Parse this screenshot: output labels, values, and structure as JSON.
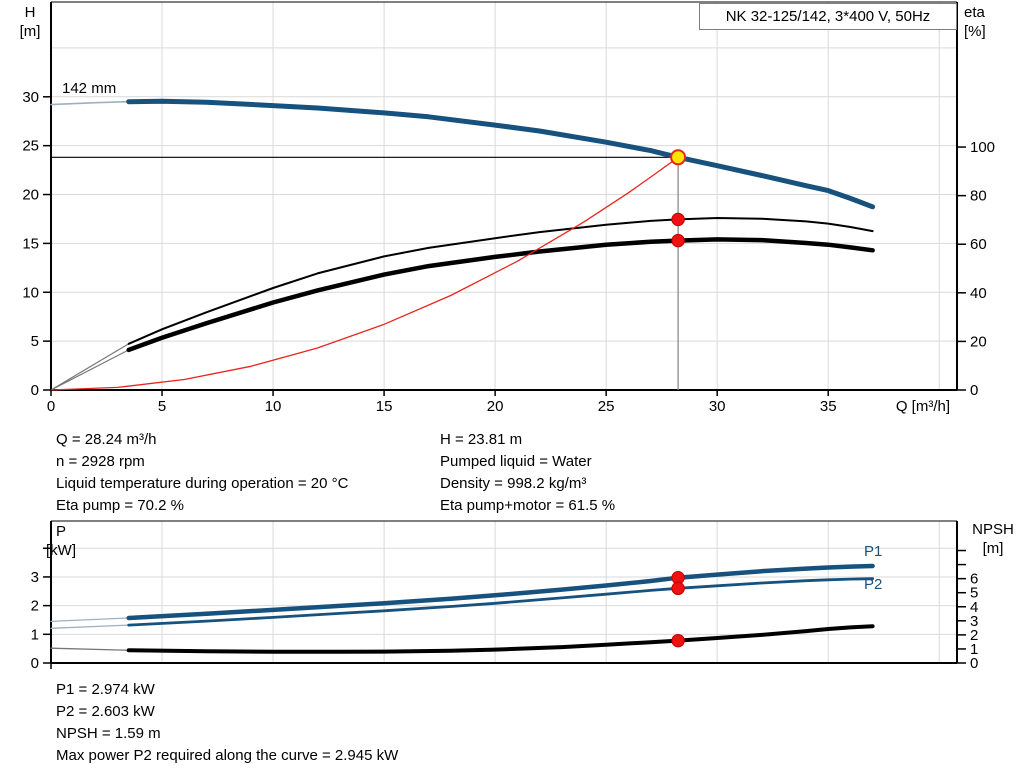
{
  "title_box": {
    "label": "NK 32-125/142, 3*400 V, 50Hz"
  },
  "axis_titles": {
    "h_line1": "H",
    "h_line2": "[m]",
    "eta_line1": "eta",
    "eta_line2": "[%]",
    "q": "Q [m³/h]",
    "p_line1": "P",
    "p_line2": "[kW]",
    "npsh_line1": "NPSH",
    "npsh_line2": "[m]"
  },
  "curve_labels": {
    "diameter": "142 mm",
    "p1": "P1",
    "p2": "P2"
  },
  "info_top": {
    "left": [
      "Q = 28.24 m³/h",
      "n = 2928 rpm",
      "Liquid temperature during operation = 20 °C",
      "Eta pump = 70.2 %"
    ],
    "right": [
      "H = 23.81 m",
      "Pumped liquid = Water",
      "Density = 998.2 kg/m³",
      "Eta pump+motor = 61.5 %"
    ]
  },
  "info_bottom": {
    "lines": [
      "P1 = 2.974 kW",
      "P2 = 2.603 kW",
      "NPSH = 1.59 m",
      "Max power P2 required along the curve = 2.945 kW"
    ]
  },
  "colors": {
    "curve_blue": "#17517e",
    "curve_black": "#000000",
    "curve_red": "#e8251d",
    "marker_red": "#ee1111",
    "marker_yellow": "#ffe300",
    "grid": "#d9d9d9",
    "frame": "#000000",
    "lead_gray": "#8a8a8a",
    "duty_vline_gray": "#808080"
  },
  "chart_data": [
    {
      "type": "line",
      "title": "Head and efficiency vs flow",
      "x_axis": {
        "label": "Q [m³/h]",
        "min": 0,
        "max": 40.8,
        "tick_values": [
          0,
          5,
          10,
          15,
          20,
          25,
          30,
          35
        ],
        "grid_values": [
          5,
          10,
          15,
          20,
          25,
          30,
          35,
          40
        ],
        "show_labels": true
      },
      "y_left": {
        "label": "H [m]",
        "min": 0,
        "max": 39.7,
        "tick_values": [
          0,
          5,
          10,
          15,
          20,
          25,
          30
        ],
        "grid_values": [
          5,
          10,
          15,
          20,
          25,
          30,
          35
        ],
        "extra_ticks": []
      },
      "y_right": {
        "label": "eta [%]",
        "min": 0,
        "max": 159.7,
        "tick_values": [
          0,
          20,
          40,
          60,
          80,
          100
        ],
        "extra_ticks": []
      },
      "legend_position": "none",
      "series": [
        {
          "name": "head-curve-142mm",
          "axis": "left",
          "color": "#17517e",
          "width": 5,
          "lead_color": "#9fb0c0",
          "lead_width": 1.6,
          "split": 3.5,
          "points": [
            [
              0,
              29.2
            ],
            [
              2,
              29.4
            ],
            [
              3.5,
              29.5
            ],
            [
              5,
              29.55
            ],
            [
              7,
              29.45
            ],
            [
              10,
              29.1
            ],
            [
              12,
              28.85
            ],
            [
              15,
              28.35
            ],
            [
              17,
              27.95
            ],
            [
              20,
              27.1
            ],
            [
              22,
              26.5
            ],
            [
              25,
              25.35
            ],
            [
              27,
              24.5
            ],
            [
              28.24,
              23.81
            ],
            [
              30,
              22.95
            ],
            [
              32,
              21.95
            ],
            [
              34,
              20.9
            ],
            [
              35,
              20.4
            ],
            [
              36,
              19.6
            ],
            [
              37,
              18.75
            ]
          ]
        },
        {
          "name": "eta-pump-curve",
          "axis": "right",
          "color": "#000000",
          "width": 2,
          "lead_color": "#777777",
          "lead_width": 1.2,
          "split": 3.5,
          "points": [
            [
              0,
              0
            ],
            [
              3.5,
              19
            ],
            [
              5,
              25
            ],
            [
              7,
              32
            ],
            [
              10,
              42
            ],
            [
              12,
              48
            ],
            [
              15,
              55
            ],
            [
              17,
              58.5
            ],
            [
              20,
              62.5
            ],
            [
              22,
              65
            ],
            [
              25,
              68
            ],
            [
              27,
              69.6
            ],
            [
              28.24,
              70.2
            ],
            [
              30,
              70.8
            ],
            [
              32,
              70.5
            ],
            [
              34,
              69.4
            ],
            [
              35,
              68.5
            ],
            [
              36,
              67.1
            ],
            [
              37,
              65.4
            ]
          ]
        },
        {
          "name": "eta-pump-motor-curve",
          "axis": "right",
          "color": "#000000",
          "width": 4.5,
          "lead_color": "#777777",
          "lead_width": 1.2,
          "split": 3.5,
          "points": [
            [
              0,
              0
            ],
            [
              3.5,
              16.5
            ],
            [
              5,
              21.5
            ],
            [
              7,
              27.5
            ],
            [
              10,
              36
            ],
            [
              12,
              41
            ],
            [
              15,
              47.5
            ],
            [
              17,
              51
            ],
            [
              20,
              54.8
            ],
            [
              22,
              57
            ],
            [
              25,
              59.8
            ],
            [
              27,
              61
            ],
            [
              28.24,
              61.5
            ],
            [
              30,
              62
            ],
            [
              32,
              61.7
            ],
            [
              34,
              60.5
            ],
            [
              35,
              59.8
            ],
            [
              36,
              58.7
            ],
            [
              37,
              57.5
            ]
          ]
        },
        {
          "name": "system-curve",
          "axis": "left",
          "color": "#e8251d",
          "width": 1.3,
          "lead_color": null,
          "lead_width": 0,
          "split": null,
          "points": [
            [
              0,
              0
            ],
            [
              3,
              0.27
            ],
            [
              6,
              1.07
            ],
            [
              9,
              2.42
            ],
            [
              12,
              4.3
            ],
            [
              15,
              6.72
            ],
            [
              18,
              9.67
            ],
            [
              21,
              13.17
            ],
            [
              24,
              17.2
            ],
            [
              26,
              20.18
            ],
            [
              27.2,
              22.1
            ],
            [
              28.24,
              23.81
            ]
          ]
        }
      ],
      "ref_lines": [
        {
          "type": "h",
          "v": 23.81,
          "q1": 0,
          "q2": 28.24,
          "color": "#000000",
          "width": 1.2
        },
        {
          "type": "v",
          "q": 28.24,
          "v1": 23.81,
          "v2": 0,
          "color": "#808080",
          "width": 1.2
        }
      ],
      "markers": [
        {
          "q": 28.24,
          "v": 70.2,
          "axis": "right",
          "kind": "dot"
        },
        {
          "q": 28.24,
          "v": 61.5,
          "axis": "right",
          "kind": "dot"
        },
        {
          "q": 28.24,
          "v": 23.81,
          "axis": "left",
          "kind": "duty"
        }
      ]
    },
    {
      "type": "line",
      "title": "Power and NPSH vs flow",
      "x_axis": {
        "label": "",
        "min": 0,
        "max": 40.8,
        "tick_values": [
          0
        ],
        "grid_values": [
          5,
          10,
          15,
          20,
          25,
          30,
          35,
          40
        ],
        "show_labels": false
      },
      "y_left": {
        "label": "P [kW]",
        "min": 0,
        "max": 4.95,
        "tick_values": [
          0,
          1,
          2,
          3
        ],
        "grid_values": [
          1,
          2,
          3,
          4
        ],
        "extra_ticks": [
          4
        ]
      },
      "y_right": {
        "label": "NPSH [m]",
        "min": 0,
        "max": 10.1,
        "tick_values": [
          0,
          1,
          2,
          3,
          4,
          5,
          6
        ],
        "extra_ticks": [
          7,
          8
        ]
      },
      "legend_position": "inline-labels",
      "series": [
        {
          "name": "p1-curve",
          "axis": "left",
          "color": "#17517e",
          "width": 4.5,
          "lead_color": "#9fb0c0",
          "lead_width": 1.3,
          "split": 3.5,
          "points": [
            [
              0,
              1.45
            ],
            [
              3.5,
              1.57
            ],
            [
              7,
              1.72
            ],
            [
              10,
              1.85
            ],
            [
              13,
              1.99
            ],
            [
              15,
              2.08
            ],
            [
              18,
              2.24
            ],
            [
              20,
              2.36
            ],
            [
              23,
              2.56
            ],
            [
              25,
              2.7
            ],
            [
              27,
              2.86
            ],
            [
              28.24,
              2.974
            ],
            [
              30,
              3.08
            ],
            [
              32,
              3.2
            ],
            [
              34,
              3.29
            ],
            [
              35,
              3.33
            ],
            [
              36,
              3.36
            ],
            [
              37,
              3.38
            ]
          ]
        },
        {
          "name": "p2-curve",
          "axis": "left",
          "color": "#17517e",
          "width": 2.8,
          "lead_color": "#9fb0c0",
          "lead_width": 1.3,
          "split": 3.5,
          "points": [
            [
              0,
              1.21
            ],
            [
              3.5,
              1.32
            ],
            [
              7,
              1.46
            ],
            [
              10,
              1.59
            ],
            [
              13,
              1.73
            ],
            [
              15,
              1.82
            ],
            [
              18,
              1.97
            ],
            [
              20,
              2.08
            ],
            [
              23,
              2.27
            ],
            [
              25,
              2.4
            ],
            [
              27,
              2.53
            ],
            [
              28.24,
              2.603
            ],
            [
              30,
              2.69
            ],
            [
              32,
              2.79
            ],
            [
              34,
              2.87
            ],
            [
              35,
              2.9
            ],
            [
              36,
              2.925
            ],
            [
              37,
              2.94
            ]
          ]
        },
        {
          "name": "npsh-curve",
          "axis": "right",
          "color": "#000000",
          "width": 4,
          "lead_color": "#777777",
          "lead_width": 1.3,
          "split": 3.5,
          "points": [
            [
              0,
              1.05
            ],
            [
              3.5,
              0.9
            ],
            [
              7,
              0.83
            ],
            [
              10,
              0.8
            ],
            [
              13,
              0.8
            ],
            [
              15,
              0.81
            ],
            [
              18,
              0.87
            ],
            [
              20,
              0.95
            ],
            [
              23,
              1.13
            ],
            [
              25,
              1.3
            ],
            [
              27,
              1.48
            ],
            [
              28.24,
              1.59
            ],
            [
              30,
              1.78
            ],
            [
              32,
              2.0
            ],
            [
              34,
              2.27
            ],
            [
              35,
              2.42
            ],
            [
              36,
              2.53
            ],
            [
              37,
              2.62
            ]
          ]
        }
      ],
      "ref_lines": [],
      "markers": [
        {
          "q": 28.24,
          "v": 2.974,
          "axis": "left",
          "kind": "dot"
        },
        {
          "q": 28.24,
          "v": 2.603,
          "axis": "left",
          "kind": "dot"
        },
        {
          "q": 28.24,
          "v": 1.59,
          "axis": "right",
          "kind": "dot"
        }
      ]
    }
  ]
}
